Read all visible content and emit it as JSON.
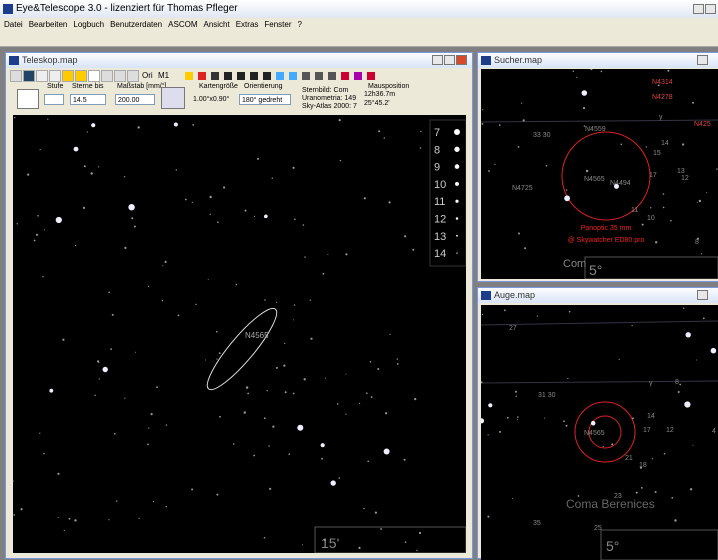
{
  "app": {
    "title": "Eye&Telescope 3.0 - lizenziert für Thomas Pfleger",
    "menu": [
      "Datei",
      "Bearbeiten",
      "Logbuch",
      "Benutzerdaten",
      "ASCOM",
      "Ansicht",
      "Extras",
      "Fenster",
      "?"
    ]
  },
  "teleskop": {
    "title": "Teleskop.map",
    "toolbar": [
      "Ori",
      "M1"
    ],
    "controls": {
      "stufe_label": "Stufe",
      "sterne_label": "Sterne bis",
      "sterne_value": "14.5",
      "massstab_label": "Maßstab [mm/°]",
      "massstab_value": "200.00",
      "karten_label": "Kartengröße",
      "karten_value": "1.00°x0.90°",
      "orient_label": "Orientierung",
      "orient_value": "180° gedreht",
      "sternbild": "Sternbild: Com",
      "uranometria": "Uranometria: 149",
      "skyatlas": "Sky-Atlas 2000: 7",
      "maus_label": "Mausposition",
      "ra": "12h36.7m",
      "dec": "25°45.2'"
    },
    "magnitudes": [
      "7",
      "8",
      "9",
      "10",
      "11",
      "12",
      "13",
      "14"
    ],
    "object": "N4565",
    "scale": "15'"
  },
  "sucher": {
    "title": "Sucher.map",
    "labels": [
      "N4314",
      "N4278",
      "N425",
      "N4559",
      "33 30",
      "14",
      "15",
      "13",
      "12",
      "17",
      "N4565",
      "N4494",
      "N4725",
      "11",
      "10",
      "8",
      "γ",
      "Com"
    ],
    "eyepiece": "Panoptic 35 mm",
    "scope": "@ Skywatcher ED80 pro",
    "scale": "5°"
  },
  "auge": {
    "title": "Auge.map",
    "labels": [
      "27",
      "γ",
      "31 30",
      "N4565",
      "17",
      "12",
      "14",
      "21",
      "18",
      "8",
      "4",
      "23",
      "35",
      "25"
    ],
    "constellation": "Coma Berenices",
    "scale": "5°"
  }
}
